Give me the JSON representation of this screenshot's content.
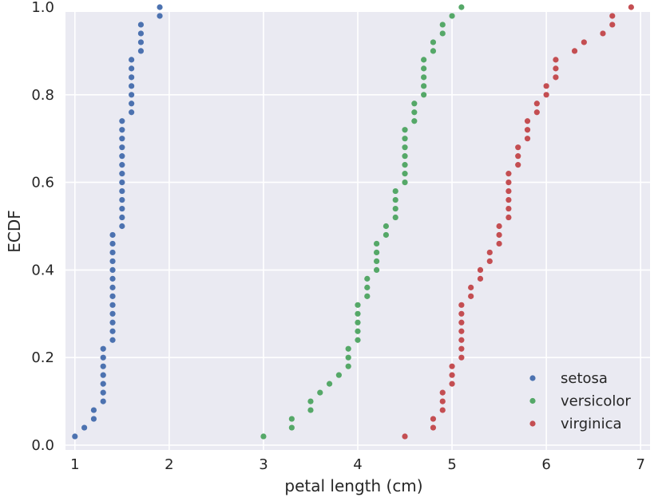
{
  "chart_data": {
    "type": "scatter",
    "title": "",
    "xlabel": "petal length (cm)",
    "ylabel": "ECDF",
    "xlim": [
      0.9,
      7.1
    ],
    "ylim": [
      0.0,
      1.0
    ],
    "xticks": [
      1,
      2,
      3,
      4,
      5,
      6,
      7
    ],
    "xtick_labels": [
      "1",
      "2",
      "3",
      "4",
      "5",
      "6",
      "7"
    ],
    "yticks": [
      0.0,
      0.2,
      0.4,
      0.6,
      0.8,
      1.0
    ],
    "ytick_labels": [
      "0.0",
      "0.2",
      "0.4",
      "0.6",
      "0.8",
      "1.0"
    ],
    "grid": true,
    "legend_position": "bottom-right",
    "series": [
      {
        "name": "setosa",
        "color": "#4c72b0",
        "x": [
          1.0,
          1.1,
          1.2,
          1.2,
          1.3,
          1.3,
          1.3,
          1.3,
          1.3,
          1.3,
          1.3,
          1.4,
          1.4,
          1.4,
          1.4,
          1.4,
          1.4,
          1.4,
          1.4,
          1.4,
          1.4,
          1.4,
          1.4,
          1.4,
          1.5,
          1.5,
          1.5,
          1.5,
          1.5,
          1.5,
          1.5,
          1.5,
          1.5,
          1.5,
          1.5,
          1.5,
          1.5,
          1.6,
          1.6,
          1.6,
          1.6,
          1.6,
          1.6,
          1.6,
          1.7,
          1.7,
          1.7,
          1.7,
          1.9,
          1.9
        ],
        "y": [
          0.02,
          0.04,
          0.06,
          0.08,
          0.1,
          0.12,
          0.14,
          0.16,
          0.18,
          0.2,
          0.22,
          0.24,
          0.26,
          0.28,
          0.3,
          0.32,
          0.34,
          0.36,
          0.38,
          0.4,
          0.42,
          0.44,
          0.46,
          0.48,
          0.5,
          0.52,
          0.54,
          0.56,
          0.58,
          0.6,
          0.62,
          0.64,
          0.66,
          0.68,
          0.7,
          0.72,
          0.74,
          0.76,
          0.78,
          0.8,
          0.82,
          0.84,
          0.86,
          0.88,
          0.9,
          0.92,
          0.94,
          0.96,
          0.98,
          1.0
        ]
      },
      {
        "name": "versicolor",
        "color": "#55a868",
        "x": [
          3.0,
          3.3,
          3.3,
          3.5,
          3.5,
          3.6,
          3.7,
          3.8,
          3.9,
          3.9,
          3.9,
          4.0,
          4.0,
          4.0,
          4.0,
          4.0,
          4.1,
          4.1,
          4.1,
          4.2,
          4.2,
          4.2,
          4.2,
          4.3,
          4.3,
          4.4,
          4.4,
          4.4,
          4.4,
          4.5,
          4.5,
          4.5,
          4.5,
          4.5,
          4.5,
          4.5,
          4.6,
          4.6,
          4.6,
          4.7,
          4.7,
          4.7,
          4.7,
          4.7,
          4.8,
          4.8,
          4.9,
          4.9,
          5.0,
          5.1
        ],
        "y": [
          0.02,
          0.04,
          0.06,
          0.08,
          0.1,
          0.12,
          0.14,
          0.16,
          0.18,
          0.2,
          0.22,
          0.24,
          0.26,
          0.28,
          0.3,
          0.32,
          0.34,
          0.36,
          0.38,
          0.4,
          0.42,
          0.44,
          0.46,
          0.48,
          0.5,
          0.52,
          0.54,
          0.56,
          0.58,
          0.6,
          0.62,
          0.64,
          0.66,
          0.68,
          0.7,
          0.72,
          0.74,
          0.76,
          0.78,
          0.8,
          0.82,
          0.84,
          0.86,
          0.88,
          0.9,
          0.92,
          0.94,
          0.96,
          0.98,
          1.0
        ]
      },
      {
        "name": "virginica",
        "color": "#c44e52",
        "x": [
          4.5,
          4.8,
          4.8,
          4.9,
          4.9,
          4.9,
          5.0,
          5.0,
          5.0,
          5.1,
          5.1,
          5.1,
          5.1,
          5.1,
          5.1,
          5.1,
          5.2,
          5.2,
          5.3,
          5.3,
          5.4,
          5.4,
          5.5,
          5.5,
          5.5,
          5.6,
          5.6,
          5.6,
          5.6,
          5.6,
          5.6,
          5.7,
          5.7,
          5.7,
          5.8,
          5.8,
          5.8,
          5.9,
          5.9,
          6.0,
          6.0,
          6.1,
          6.1,
          6.1,
          6.3,
          6.4,
          6.6,
          6.7,
          6.7,
          6.9
        ],
        "y": [
          0.02,
          0.04,
          0.06,
          0.08,
          0.1,
          0.12,
          0.14,
          0.16,
          0.18,
          0.2,
          0.22,
          0.24,
          0.26,
          0.28,
          0.3,
          0.32,
          0.34,
          0.36,
          0.38,
          0.4,
          0.42,
          0.44,
          0.46,
          0.48,
          0.5,
          0.52,
          0.54,
          0.56,
          0.58,
          0.6,
          0.62,
          0.64,
          0.66,
          0.68,
          0.7,
          0.72,
          0.74,
          0.76,
          0.78,
          0.8,
          0.82,
          0.84,
          0.86,
          0.88,
          0.9,
          0.92,
          0.94,
          0.96,
          0.98,
          1.0
        ]
      }
    ]
  }
}
